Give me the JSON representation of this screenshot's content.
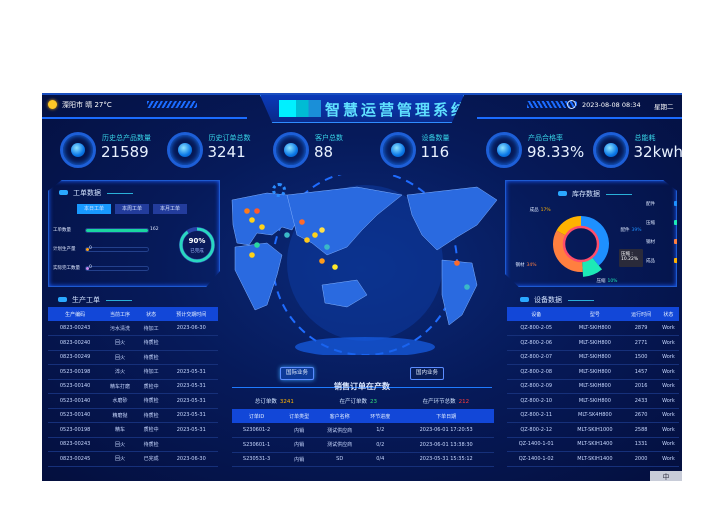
{
  "header": {
    "weather_city": "溧阳市",
    "weather": "晴",
    "temperature": "27°C",
    "title": "智慧运营管理系统",
    "datetime": "2023-08-08 08:34",
    "weekday": "星期二"
  },
  "kpis": [
    {
      "label": "历史总产品数量",
      "value": "21589"
    },
    {
      "label": "历史订单总数",
      "value": "3241"
    },
    {
      "label": "客户总数",
      "value": "88"
    },
    {
      "label": "设备数量",
      "value": "116"
    },
    {
      "label": "产品合格率",
      "value": "98.33%"
    },
    {
      "label": "总能耗",
      "value": "32kwh"
    }
  ],
  "work_orders": {
    "title": "工单数据",
    "tabs": [
      {
        "label": "本日工单",
        "active": true
      },
      {
        "label": "本周工单",
        "active": false
      },
      {
        "label": "本月工单",
        "active": false
      }
    ],
    "bars": [
      {
        "label": "工单数量",
        "value": "162",
        "fraction": 1.0,
        "color": "#19d6a0"
      },
      {
        "label": "计划生产量",
        "value": "0",
        "fraction": 0.05,
        "color": "#ffa21a"
      },
      {
        "label": "实际完工数量",
        "value": "0",
        "fraction": 0.05,
        "color": "#c98cf0"
      }
    ],
    "gauge": {
      "value": "90%",
      "label": "已完成",
      "fraction": 0.9
    }
  },
  "production": {
    "title": "生产工单",
    "columns": [
      "生产编码",
      "当前工序",
      "状态",
      "预计交期时间"
    ],
    "rows": [
      [
        "0823-00243",
        "污水清洗",
        "待加工",
        "2023-06-30"
      ],
      [
        "0823-00240",
        "回火",
        "待质检",
        ""
      ],
      [
        "0823-00249",
        "回火",
        "待质检",
        ""
      ],
      [
        "0523-00198",
        "淬火",
        "待加工",
        "2023-05-31"
      ],
      [
        "0523-00140",
        "精车打磨",
        "质检中",
        "2023-05-31"
      ],
      [
        "0523-00140",
        "水磨砂",
        "待质检",
        "2023-05-31"
      ],
      [
        "0523-00140",
        "精磨抛",
        "待质检",
        "2023-05-31"
      ],
      [
        "0523-00198",
        "精车",
        "质检中",
        "2023-05-31"
      ],
      [
        "0823-00243",
        "回火",
        "待质检",
        ""
      ],
      [
        "0823-00245",
        "回火",
        "已完成",
        "2023-06-30"
      ]
    ]
  },
  "inventory": {
    "title": "库存数据",
    "legend": [
      {
        "name": "配件",
        "color": "#1e90ff"
      },
      {
        "name": "压缩",
        "color": "#1de9b6"
      },
      {
        "name": "钢材",
        "color": "#ff7f3f"
      },
      {
        "name": "成品",
        "color": "#ffb300"
      }
    ],
    "chart_data": {
      "type": "pie",
      "categories": [
        "配件",
        "压缩",
        "钢材",
        "成品"
      ],
      "values": [
        39,
        10,
        34,
        17
      ],
      "labels": [
        "39%",
        "10%",
        "34%",
        "17%"
      ]
    },
    "tooltip": {
      "name": "压缩 :",
      "value": "10.22%"
    }
  },
  "equipment": {
    "title": "设备数据",
    "columns": [
      "设备",
      "型号",
      "运行时间",
      "状态"
    ],
    "rows": [
      [
        "QZ-800-2-05",
        "MLT-SKIH800",
        "2879",
        "Work"
      ],
      [
        "QZ-800-2-06",
        "MLT-SKIH800",
        "2771",
        "Work"
      ],
      [
        "QZ-800-2-07",
        "MLT-SKIH800",
        "1500",
        "Work"
      ],
      [
        "QZ-800-2-08",
        "MLT-SKIH800",
        "1457",
        "Work"
      ],
      [
        "QZ-800-2-09",
        "MLT-SKIH800",
        "2016",
        "Work"
      ],
      [
        "QZ-800-2-10",
        "MLT-SKIH800",
        "2433",
        "Work"
      ],
      [
        "QZ-800-2-11",
        "MLT-SK4H800",
        "2670",
        "Work"
      ],
      [
        "QZ-800-2-12",
        "MLT-SKIH1000",
        "2588",
        "Work"
      ],
      [
        "QZ-1400-1-01",
        "MLT-SKIH1400",
        "1331",
        "Work"
      ],
      [
        "QZ-1400-1-02",
        "MLT-SKIH1400",
        "2000",
        "Work"
      ]
    ]
  },
  "sales": {
    "btn_international": "国际业务",
    "btn_domestic": "国内业务",
    "title": "销售订单在产数",
    "stats": [
      {
        "label": "总订单数",
        "value": "3241",
        "color": "#ffb300"
      },
      {
        "label": "在产订单数",
        "value": "23",
        "color": "#33e07a"
      },
      {
        "label": "在产环节总数",
        "value": "212",
        "color": "#ff3b3b"
      }
    ],
    "columns": [
      "订单ID",
      "订单类型",
      "客户名称",
      "环节进度",
      "下单日期"
    ],
    "rows": [
      [
        "S230601-2",
        "内销",
        "测试供应商",
        "1/2",
        "2023-06-01 17:20:53"
      ],
      [
        "S230601-1",
        "内销",
        "测试供应商",
        "0/2",
        "2023-06-01 13:38:30"
      ],
      [
        "S230531-3",
        "内销",
        "SD",
        "0/4",
        "2023-05-31 15:35:12"
      ]
    ]
  },
  "ime": "中"
}
